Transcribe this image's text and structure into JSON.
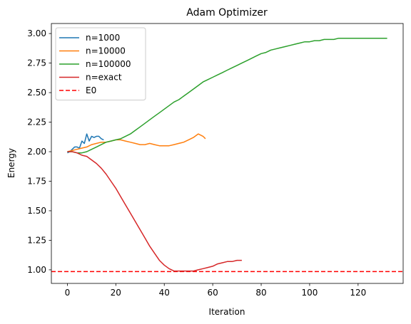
{
  "chart_data": {
    "type": "line",
    "title": "Adam Optimizer",
    "xlabel": "Iteration",
    "ylabel": "Energy",
    "xlim": [
      -6.6,
      138.6
    ],
    "ylim": [
      0.885,
      3.085
    ],
    "xticks": [
      0,
      20,
      40,
      60,
      80,
      100,
      120
    ],
    "yticks": [
      1.0,
      1.25,
      1.5,
      1.75,
      2.0,
      2.25,
      2.5,
      2.75,
      3.0
    ],
    "ytick_labels": [
      "1.00",
      "1.25",
      "1.50",
      "1.75",
      "2.00",
      "2.25",
      "2.50",
      "2.75",
      "3.00"
    ],
    "grid": false,
    "legend_position": "upper-left",
    "series": [
      {
        "name": "n=1000",
        "color": "#1f77b4",
        "style": "solid",
        "x": [
          0,
          1,
          2,
          3,
          4,
          5,
          6,
          7,
          8,
          9,
          10,
          11,
          12,
          13,
          14,
          15
        ],
        "y": [
          1.99,
          2.0,
          2.02,
          2.04,
          2.04,
          2.03,
          2.09,
          2.07,
          2.15,
          2.09,
          2.13,
          2.12,
          2.13,
          2.13,
          2.11,
          2.1
        ]
      },
      {
        "name": "n=10000",
        "color": "#ff7f0e",
        "style": "solid",
        "x": [
          0,
          2,
          4,
          6,
          8,
          10,
          12,
          14,
          16,
          18,
          20,
          22,
          24,
          26,
          28,
          30,
          32,
          34,
          36,
          38,
          40,
          42,
          44,
          46,
          48,
          50,
          52,
          54,
          56,
          57
        ],
        "y": [
          2.0,
          2.01,
          2.02,
          2.03,
          2.04,
          2.06,
          2.07,
          2.08,
          2.08,
          2.09,
          2.1,
          2.1,
          2.09,
          2.08,
          2.07,
          2.06,
          2.06,
          2.07,
          2.06,
          2.05,
          2.05,
          2.05,
          2.06,
          2.07,
          2.08,
          2.1,
          2.12,
          2.15,
          2.13,
          2.11
        ]
      },
      {
        "name": "n=100000",
        "color": "#2ca02c",
        "style": "solid",
        "x": [
          0,
          2,
          4,
          6,
          8,
          10,
          12,
          14,
          16,
          18,
          20,
          22,
          24,
          26,
          28,
          30,
          32,
          34,
          36,
          38,
          40,
          42,
          44,
          46,
          48,
          50,
          52,
          54,
          56,
          58,
          60,
          62,
          64,
          66,
          68,
          70,
          72,
          74,
          76,
          78,
          80,
          82,
          84,
          86,
          88,
          90,
          92,
          94,
          96,
          98,
          100,
          102,
          104,
          106,
          108,
          110,
          112,
          114,
          116,
          118,
          120,
          122,
          124,
          126,
          128,
          130,
          132
        ],
        "y": [
          2.0,
          2.0,
          1.99,
          1.99,
          2.0,
          2.02,
          2.04,
          2.06,
          2.08,
          2.09,
          2.1,
          2.11,
          2.13,
          2.15,
          2.18,
          2.21,
          2.24,
          2.27,
          2.3,
          2.33,
          2.36,
          2.39,
          2.42,
          2.44,
          2.47,
          2.5,
          2.53,
          2.56,
          2.59,
          2.61,
          2.63,
          2.65,
          2.67,
          2.69,
          2.71,
          2.73,
          2.75,
          2.77,
          2.79,
          2.81,
          2.83,
          2.84,
          2.86,
          2.87,
          2.88,
          2.89,
          2.9,
          2.91,
          2.92,
          2.93,
          2.93,
          2.94,
          2.94,
          2.95,
          2.95,
          2.95,
          2.96,
          2.96,
          2.96,
          2.96,
          2.96,
          2.96,
          2.96,
          2.96,
          2.96,
          2.96,
          2.96
        ]
      },
      {
        "name": "n=exact",
        "color": "#d62728",
        "style": "solid",
        "x": [
          0,
          2,
          4,
          6,
          8,
          10,
          12,
          14,
          16,
          18,
          20,
          22,
          24,
          26,
          28,
          30,
          32,
          34,
          36,
          38,
          40,
          42,
          44,
          46,
          48,
          50,
          52,
          54,
          56,
          58,
          60,
          62,
          64,
          66,
          68,
          70,
          72
        ],
        "y": [
          2.0,
          2.0,
          1.99,
          1.97,
          1.96,
          1.93,
          1.9,
          1.86,
          1.81,
          1.75,
          1.69,
          1.62,
          1.55,
          1.48,
          1.41,
          1.34,
          1.27,
          1.2,
          1.14,
          1.08,
          1.04,
          1.01,
          0.99,
          0.99,
          0.99,
          0.99,
          0.99,
          1.0,
          1.01,
          1.02,
          1.03,
          1.05,
          1.06,
          1.07,
          1.07,
          1.08,
          1.08
        ]
      }
    ],
    "reference_lines": [
      {
        "name": "E0",
        "color": "#ff0000",
        "style": "dashed",
        "y": 0.985
      }
    ]
  }
}
